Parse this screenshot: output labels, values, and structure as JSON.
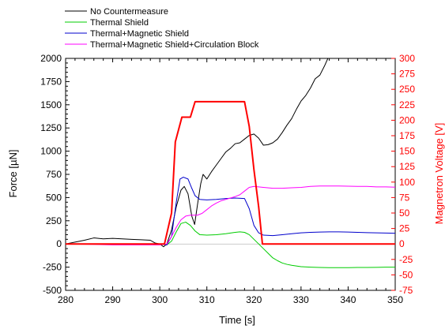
{
  "chart_data": {
    "type": "line",
    "title": "",
    "xlabel": "Time [s]",
    "ylabel": "Force [µN]",
    "y2label": "Magnetron Voltage [V]",
    "xlim": [
      280,
      350
    ],
    "ylim": [
      -500,
      2000
    ],
    "y2lim": [
      -75,
      300
    ],
    "grid": false,
    "legend_position": "top-left outside",
    "x_ticks": [
      280,
      290,
      300,
      310,
      320,
      330,
      340,
      350
    ],
    "y_ticks": [
      -500,
      -250,
      0,
      250,
      500,
      750,
      1000,
      1250,
      1500,
      1750,
      2000
    ],
    "y2_ticks": [
      -75,
      -50,
      -25,
      0,
      25,
      50,
      75,
      100,
      125,
      150,
      175,
      200,
      225,
      250,
      275,
      300
    ],
    "series": [
      {
        "name": "No Countermeasure",
        "color": "#000000",
        "axis": "left",
        "points": [
          [
            280,
            0
          ],
          [
            282,
            20
          ],
          [
            284,
            40
          ],
          [
            286,
            65
          ],
          [
            288,
            55
          ],
          [
            290,
            60
          ],
          [
            292,
            55
          ],
          [
            294,
            50
          ],
          [
            296,
            45
          ],
          [
            298,
            40
          ],
          [
            299,
            10
          ],
          [
            300,
            0
          ],
          [
            300.8,
            -30
          ],
          [
            301.5,
            0
          ],
          [
            302.5,
            150
          ],
          [
            303.5,
            400
          ],
          [
            304.5,
            580
          ],
          [
            305.2,
            620
          ],
          [
            306,
            540
          ],
          [
            306.8,
            300
          ],
          [
            307.4,
            210
          ],
          [
            308,
            420
          ],
          [
            308.7,
            650
          ],
          [
            309.2,
            750
          ],
          [
            310,
            700
          ],
          [
            311,
            780
          ],
          [
            312,
            850
          ],
          [
            313,
            920
          ],
          [
            314,
            990
          ],
          [
            315,
            1030
          ],
          [
            316,
            1080
          ],
          [
            317,
            1090
          ],
          [
            318,
            1130
          ],
          [
            319,
            1170
          ],
          [
            320,
            1185
          ],
          [
            321,
            1140
          ],
          [
            322,
            1065
          ],
          [
            323,
            1070
          ],
          [
            324,
            1090
          ],
          [
            325,
            1130
          ],
          [
            326,
            1200
          ],
          [
            327,
            1280
          ],
          [
            328,
            1350
          ],
          [
            329,
            1450
          ],
          [
            330,
            1540
          ],
          [
            331,
            1600
          ],
          [
            332,
            1680
          ],
          [
            333,
            1780
          ],
          [
            334,
            1820
          ],
          [
            335,
            1920
          ],
          [
            335.7,
            2000
          ]
        ]
      },
      {
        "name": "Thermal Shield",
        "color": "#00cc00",
        "axis": "left",
        "points": [
          [
            280,
            0
          ],
          [
            300,
            0
          ],
          [
            301.5,
            -10
          ],
          [
            302.5,
            30
          ],
          [
            303.5,
            130
          ],
          [
            304.5,
            220
          ],
          [
            305.5,
            235
          ],
          [
            306.5,
            200
          ],
          [
            307.5,
            140
          ],
          [
            308.5,
            100
          ],
          [
            310,
            95
          ],
          [
            312,
            100
          ],
          [
            314,
            110
          ],
          [
            316,
            125
          ],
          [
            317,
            130
          ],
          [
            318,
            125
          ],
          [
            319,
            100
          ],
          [
            320,
            50
          ],
          [
            321,
            0
          ],
          [
            322,
            -50
          ],
          [
            323,
            -100
          ],
          [
            324,
            -150
          ],
          [
            325,
            -180
          ],
          [
            326,
            -205
          ],
          [
            327,
            -220
          ],
          [
            328,
            -230
          ],
          [
            330,
            -245
          ],
          [
            332,
            -250
          ],
          [
            334,
            -253
          ],
          [
            336,
            -255
          ],
          [
            338,
            -255
          ],
          [
            340,
            -255
          ],
          [
            342,
            -253
          ],
          [
            344,
            -253
          ],
          [
            346,
            -252
          ],
          [
            348,
            -250
          ],
          [
            350,
            -250
          ]
        ]
      },
      {
        "name": "Thermal+Magnetic Shield",
        "color": "#0000cc",
        "axis": "left",
        "points": [
          [
            280,
            0
          ],
          [
            300,
            0
          ],
          [
            301.5,
            -10
          ],
          [
            302.5,
            80
          ],
          [
            303.5,
            450
          ],
          [
            304.3,
            700
          ],
          [
            305,
            720
          ],
          [
            306,
            700
          ],
          [
            306.8,
            600
          ],
          [
            307.5,
            520
          ],
          [
            308.5,
            480
          ],
          [
            310,
            475
          ],
          [
            312,
            480
          ],
          [
            314,
            490
          ],
          [
            316,
            495
          ],
          [
            318,
            490
          ],
          [
            319,
            380
          ],
          [
            320,
            200
          ],
          [
            321,
            120
          ],
          [
            322,
            95
          ],
          [
            324,
            90
          ],
          [
            326,
            100
          ],
          [
            328,
            110
          ],
          [
            330,
            120
          ],
          [
            332,
            125
          ],
          [
            334,
            128
          ],
          [
            336,
            130
          ],
          [
            338,
            130
          ],
          [
            340,
            128
          ],
          [
            342,
            125
          ],
          [
            344,
            122
          ],
          [
            346,
            120
          ],
          [
            348,
            118
          ],
          [
            350,
            115
          ]
        ]
      },
      {
        "name": "Thermal+Magnetic Shield+Circulation Block",
        "color": "#ff00ff",
        "axis": "left",
        "points": [
          [
            280,
            0
          ],
          [
            286,
            -5
          ],
          [
            290,
            -10
          ],
          [
            295,
            -10
          ],
          [
            300,
            -10
          ],
          [
            301.5,
            0
          ],
          [
            302.5,
            80
          ],
          [
            303.5,
            180
          ],
          [
            304.5,
            260
          ],
          [
            305.5,
            300
          ],
          [
            306.5,
            310
          ],
          [
            308,
            310
          ],
          [
            309,
            330
          ],
          [
            310,
            370
          ],
          [
            311,
            410
          ],
          [
            312,
            440
          ],
          [
            313,
            465
          ],
          [
            314,
            480
          ],
          [
            315,
            495
          ],
          [
            316,
            510
          ],
          [
            317,
            530
          ],
          [
            318,
            570
          ],
          [
            319,
            610
          ],
          [
            320,
            620
          ],
          [
            322,
            610
          ],
          [
            324,
            600
          ],
          [
            326,
            600
          ],
          [
            328,
            605
          ],
          [
            330,
            610
          ],
          [
            332,
            620
          ],
          [
            334,
            625
          ],
          [
            336,
            625
          ],
          [
            338,
            625
          ],
          [
            340,
            622
          ],
          [
            342,
            620
          ],
          [
            344,
            620
          ],
          [
            346,
            615
          ],
          [
            348,
            615
          ],
          [
            350,
            612
          ]
        ]
      },
      {
        "name": "",
        "color": "#ff0000",
        "axis": "right",
        "points": [
          [
            280,
            0
          ],
          [
            301,
            0
          ],
          [
            302.5,
            50
          ],
          [
            303.3,
            165
          ],
          [
            304.7,
            205
          ],
          [
            306.5,
            205
          ],
          [
            307.5,
            230
          ],
          [
            309,
            230
          ],
          [
            318,
            230
          ],
          [
            319,
            190
          ],
          [
            320,
            120
          ],
          [
            321,
            60
          ],
          [
            321.8,
            0
          ],
          [
            350,
            0
          ]
        ]
      }
    ]
  }
}
